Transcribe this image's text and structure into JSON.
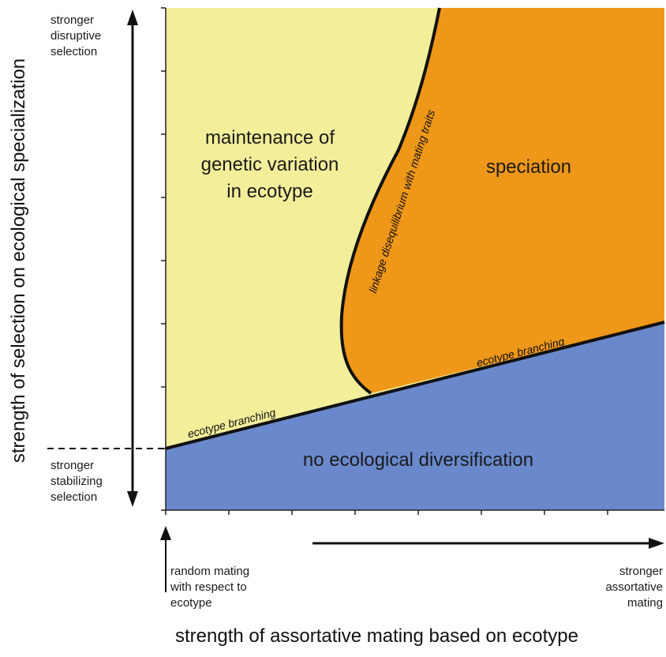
{
  "axes": {
    "y_title": "strength of selection on ecological specialization",
    "x_title": "strength of assortative mating based on ecotype",
    "y_top_note": "stronger\ndisruptive\nselection",
    "y_bottom_note": "stronger\nstabilizing\nselection",
    "x_left_note": "random mating\nwith respect to\necotype",
    "x_right_note": "stronger\nassortative\nmating"
  },
  "regions": {
    "maintenance": "maintenance of\ngenetic variation\nin ecotype",
    "speciation": "speciation",
    "no_diversification": "no ecological diversification"
  },
  "curves": {
    "lower_branching": "ecotype branching",
    "upper_branching": "ecotype branching",
    "linkage": "linkage disequilibrium with mating traits"
  },
  "colors": {
    "maintenance_fill": "#F2EE9A",
    "speciation_fill": "#EF9718",
    "no_diversification_fill": "#6A89CC",
    "boundary": "#111111"
  }
}
